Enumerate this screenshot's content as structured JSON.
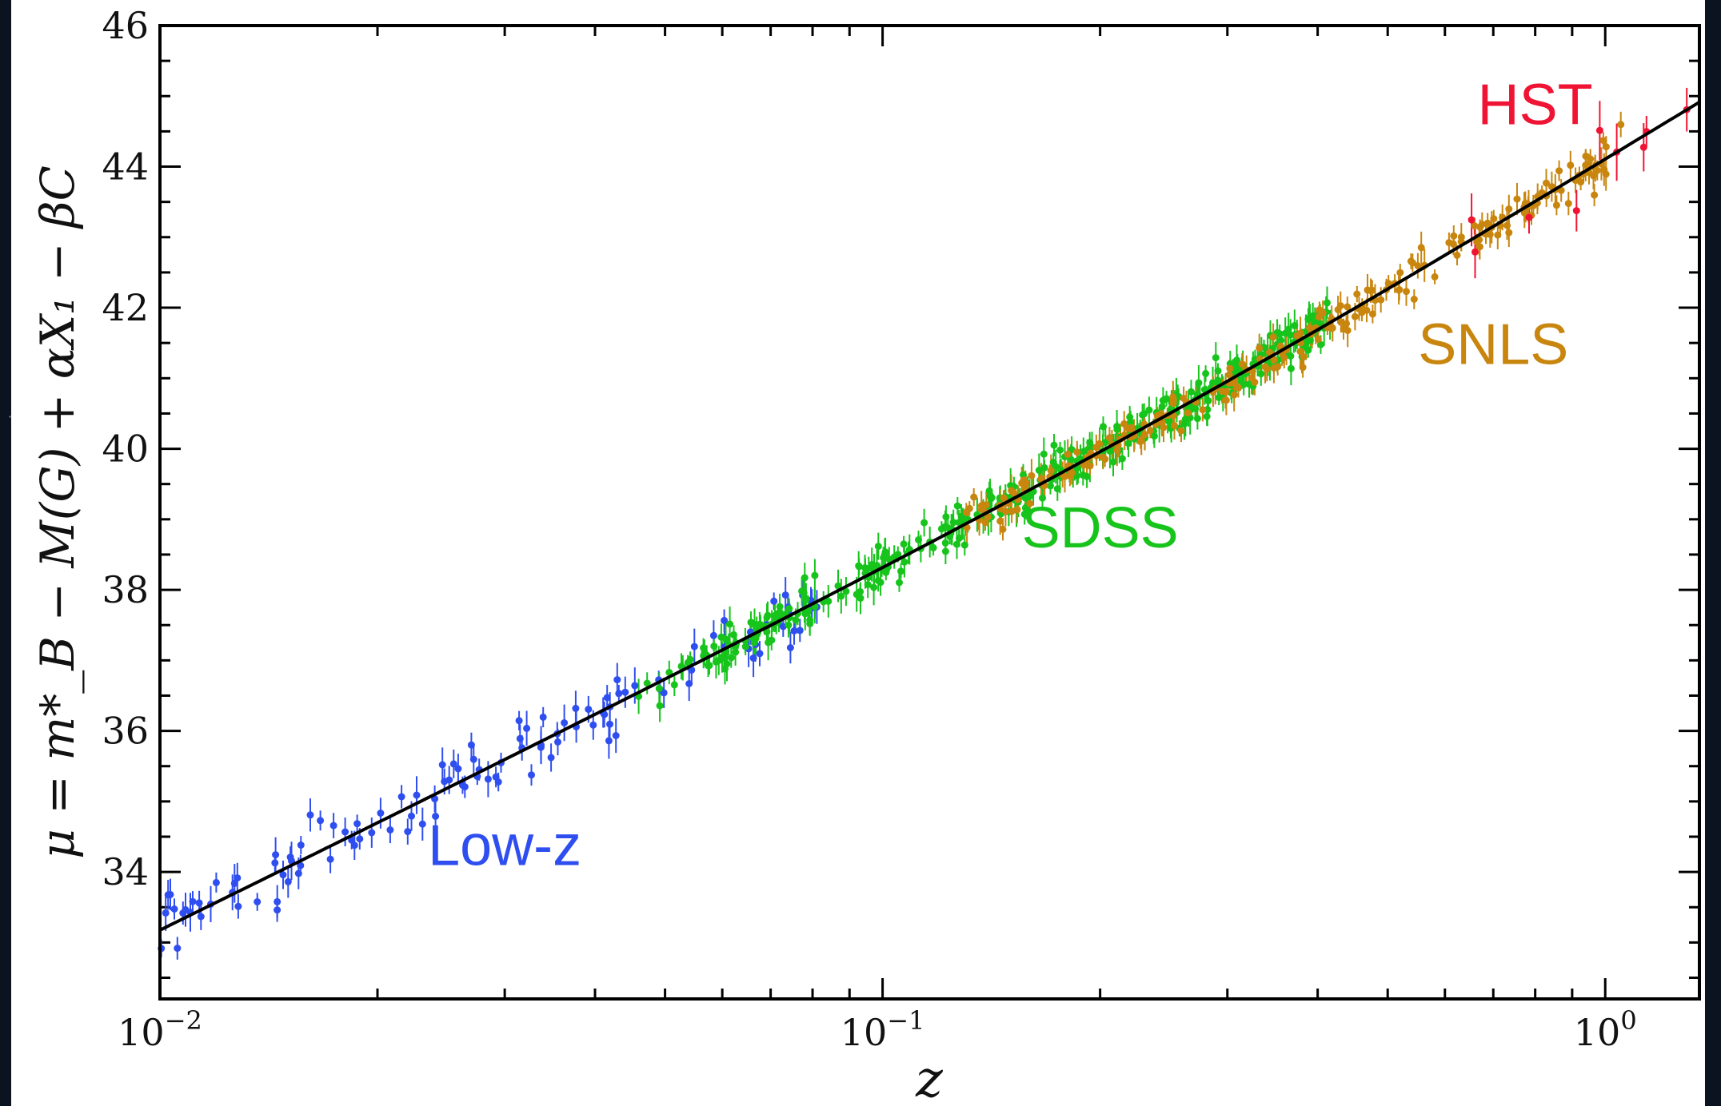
{
  "chart_data": {
    "type": "scatter",
    "title": "",
    "xlabel": "z",
    "ylabel": "μ = m*_B − M(G) + αX₁ − βC",
    "xscale": "log",
    "xlim": [
      0.01,
      1.35
    ],
    "ylim": [
      32.2,
      46.0
    ],
    "grid": false,
    "legend": "none",
    "x_ticks": [
      {
        "value": 0.01,
        "base": "10",
        "exp": "−2"
      },
      {
        "value": 0.1,
        "base": "10",
        "exp": "−1"
      },
      {
        "value": 1,
        "base": "10",
        "exp": "0"
      }
    ],
    "y_ticks": [
      "34",
      "36",
      "38",
      "40",
      "42",
      "44",
      "46"
    ],
    "series": [
      {
        "name": "Low-z",
        "color": "#2f4ef0",
        "z_range": [
          0.01,
          0.085
        ],
        "count": 118,
        "scatter": 0.22,
        "err": 0.2
      },
      {
        "name": "SDSS",
        "color": "#17c41c",
        "z_range": [
          0.045,
          0.42
        ],
        "count": 374,
        "scatter": 0.16,
        "err": 0.18
      },
      {
        "name": "SNLS",
        "color": "#c8860e",
        "z_range": [
          0.13,
          1.06
        ],
        "count": 239,
        "scatter": 0.15,
        "err": 0.17
      },
      {
        "name": "HST",
        "color": "#f01434",
        "z_range": [
          0.62,
          1.3
        ],
        "count": 9,
        "scatter": 0.2,
        "err": 0.3
      }
    ],
    "model_curve": {
      "color": "#000000",
      "z_range": [
        0.01,
        1.35
      ],
      "H0_km_s_Mpc": 70,
      "Omega_m": 0.295
    },
    "annotations": [
      {
        "text": "Low-z",
        "color": "#2f4ef0",
        "x": 0.03,
        "y": 34.1
      },
      {
        "text": "SDSS",
        "color": "#17c41c",
        "x": 0.2,
        "y": 38.6
      },
      {
        "text": "SNLS",
        "color": "#c8860e",
        "x": 0.7,
        "y": 41.2
      },
      {
        "text": "HST",
        "color": "#f01434",
        "x": 0.8,
        "y": 44.6
      }
    ]
  }
}
